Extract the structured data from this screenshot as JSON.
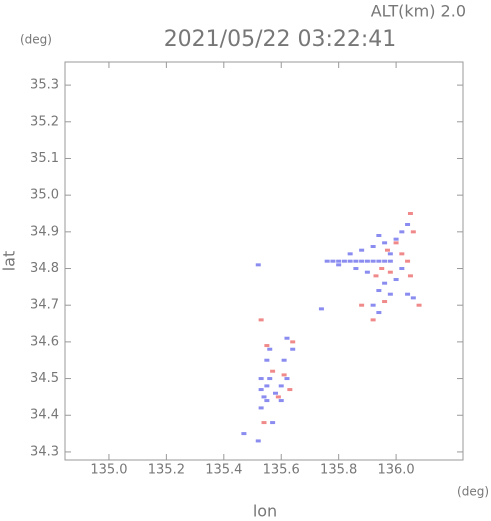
{
  "chart_data": {
    "type": "scatter",
    "title": "2021/05/22 03:22:41",
    "subtitle": "ALT(km) 2.0",
    "x_label": "lon",
    "y_label": "lat",
    "x_unit": "(deg)",
    "y_unit": "(deg)",
    "xlim": [
      134.847,
      136.233
    ],
    "ylim": [
      34.278,
      35.363
    ],
    "xticks": [
      {
        "value": 135,
        "label": "135.0"
      },
      135.2,
      135.4,
      135.6,
      135.8,
      {
        "value": 136,
        "label": "136.0"
      }
    ],
    "yticks": [
      34.3,
      34.4,
      34.5,
      34.6,
      34.7,
      34.8,
      34.9,
      {
        "value": 35,
        "label": "35.0"
      },
      35.1,
      35.2,
      35.3
    ],
    "series": [
      {
        "color": "#8a8cf0",
        "x": [
          135.76,
          135.78,
          135.8,
          135.82,
          135.84,
          135.86,
          135.88,
          135.9,
          135.92,
          135.94,
          135.96,
          135.98,
          135.8,
          135.84,
          135.88,
          135.92,
          135.96,
          136.0,
          136.02,
          136.04,
          135.94,
          135.98,
          136.02,
          136.0,
          135.96,
          135.94,
          135.98,
          136.04,
          135.92,
          135.94,
          136.06,
          135.86,
          135.9,
          135.74,
          135.52,
          135.53,
          135.54,
          135.55,
          135.56,
          135.53,
          135.55,
          135.58,
          135.6,
          135.62,
          135.61,
          135.64,
          135.56,
          135.62,
          135.55,
          135.53,
          135.52,
          135.57,
          135.47,
          135.6
        ],
        "values": [
          34.82,
          34.82,
          34.82,
          34.82,
          34.82,
          34.82,
          34.82,
          34.82,
          34.82,
          34.82,
          34.82,
          34.82,
          34.81,
          34.84,
          34.85,
          34.86,
          34.87,
          34.88,
          34.9,
          34.92,
          34.89,
          34.84,
          34.8,
          34.77,
          34.76,
          34.74,
          34.73,
          34.73,
          34.7,
          34.68,
          34.72,
          34.8,
          34.79,
          34.69,
          34.81,
          34.47,
          34.45,
          34.48,
          34.5,
          34.5,
          34.44,
          34.46,
          34.48,
          34.5,
          34.55,
          34.58,
          34.58,
          34.61,
          34.55,
          34.42,
          34.33,
          34.38,
          34.35,
          34.44
        ]
      },
      {
        "color": "#f08a8a",
        "x": [
          135.97,
          136.02,
          136.05,
          136.06,
          135.93,
          135.98,
          135.92,
          135.96,
          135.88,
          136.08,
          136.05,
          136.0,
          135.53,
          135.55,
          135.64,
          135.61,
          135.57,
          135.54,
          135.59,
          135.63,
          136.04,
          135.95
        ],
        "values": [
          34.85,
          34.84,
          34.95,
          34.9,
          34.78,
          34.79,
          34.66,
          34.71,
          34.7,
          34.7,
          34.78,
          34.87,
          34.66,
          34.59,
          34.6,
          34.51,
          34.52,
          34.38,
          34.45,
          34.47,
          34.82,
          34.8
        ]
      }
    ]
  }
}
